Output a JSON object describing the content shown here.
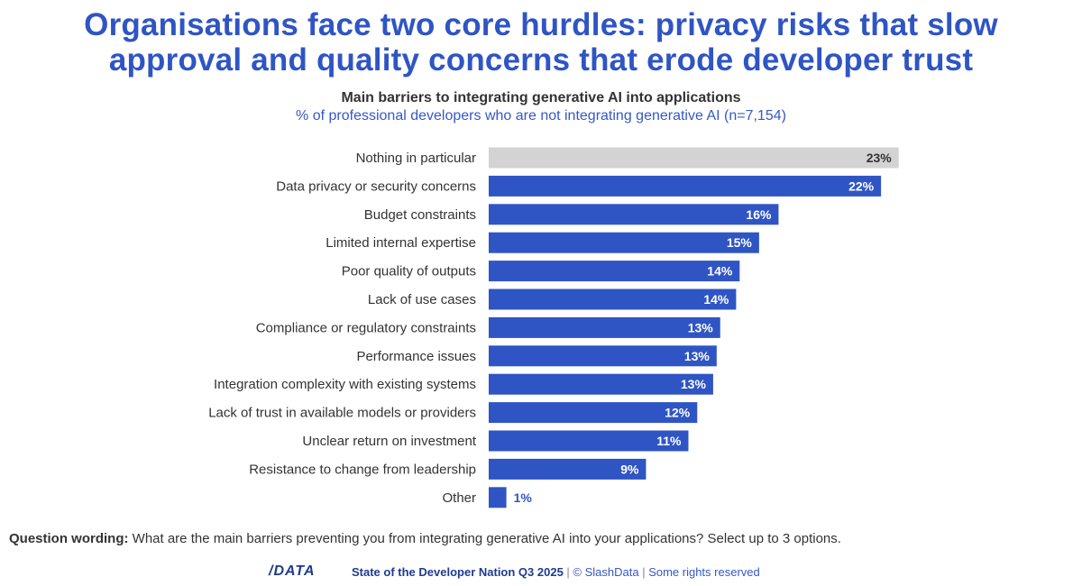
{
  "headline": {
    "line1": "Organisations face two core hurdles: privacy risks that slow",
    "line2": "approval and quality concerns that erode developer trust"
  },
  "chart_data": {
    "type": "bar",
    "orientation": "horizontal",
    "title": "Main barriers to integrating generative AI into applications",
    "subtitle": "% of professional developers who are not integrating generative AI (n=7,154)",
    "categories": [
      "Nothing in particular",
      "Data privacy or security concerns",
      "Budget constraints",
      "Limited internal expertise",
      "Poor quality of outputs",
      "Lack of use cases",
      "Compliance or regulatory constraints",
      "Performance issues",
      "Integration complexity with existing systems",
      "Lack of trust in available models or providers",
      "Unclear return on investment",
      "Resistance to change from leadership",
      "Other"
    ],
    "values": [
      23.2,
      22.2,
      16.4,
      15.3,
      14.2,
      14.0,
      13.1,
      12.9,
      12.7,
      11.8,
      11.3,
      8.9,
      1.0
    ],
    "value_labels": [
      "23%",
      "22%",
      "16%",
      "15%",
      "14%",
      "14%",
      "13%",
      "13%",
      "13%",
      "12%",
      "11%",
      "9%",
      "1%"
    ],
    "highlight_colors": [
      "#d3d3d3",
      "#2f55c4",
      "#2f55c4",
      "#2f55c4",
      "#2f55c4",
      "#2f55c4",
      "#2f55c4",
      "#2f55c4",
      "#2f55c4",
      "#2f55c4",
      "#2f55c4",
      "#2f55c4",
      "#2f55c4"
    ],
    "xlim": [
      0,
      25
    ],
    "grid": false,
    "legend": "none"
  },
  "colors": {
    "brand_blue": "#2f55c4",
    "neutral_bar": "#d3d3d3",
    "dark_label": "#333333"
  },
  "question": {
    "label": "Question wording:",
    "text": " What are the main barriers preventing you from integrating generative AI into your applications? Select up to 3 options."
  },
  "footer": {
    "logo": "/DATA",
    "report": "State of the Developer Nation Q3 2025",
    "separator1": " | ",
    "copyright": "© SlashData",
    "separator2": " | ",
    "rights": "Some rights reserved"
  }
}
